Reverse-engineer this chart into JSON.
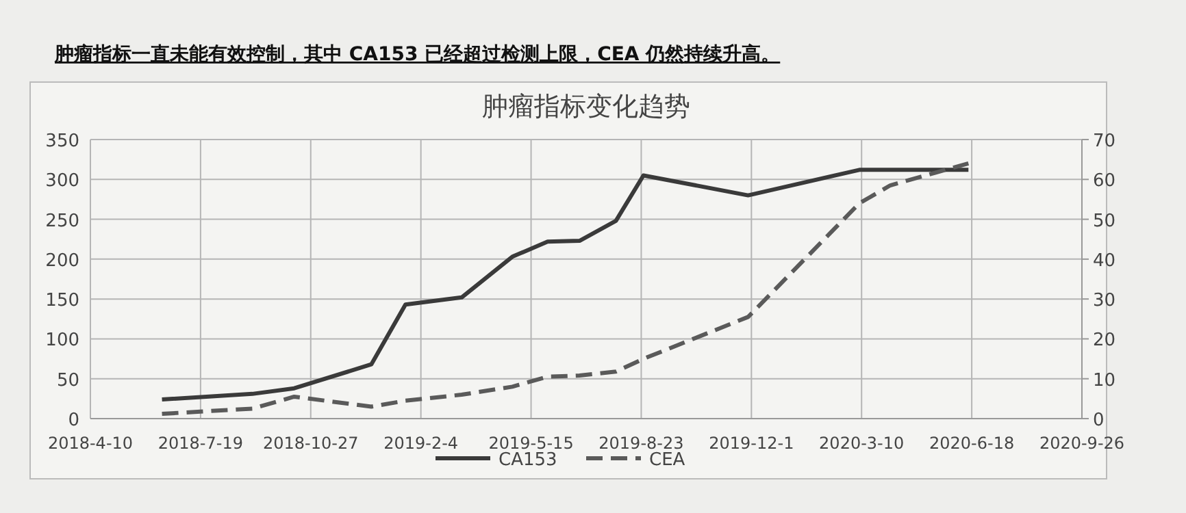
{
  "chart_data": {
    "type": "line",
    "title": "肿瘤指标变化趋势",
    "annotations": [
      "肿瘤指标一直未能有效控制，其中 CA153 已经超过检测上限，CEA 仍然持续升高。"
    ],
    "x": [
      "2018-06-14",
      "2018-09-04",
      "2018-10-12",
      "2018-12-21",
      "2019-01-21",
      "2019-03-13",
      "2019-04-28",
      "2019-05-30",
      "2019-06-28",
      "2019-07-31",
      "2019-08-25",
      "2019-11-28",
      "2020-03-08",
      "2020-04-05",
      "2020-06-15"
    ],
    "series": [
      {
        "name": "CA153",
        "color": "#3a3a3a",
        "line_style": "solid",
        "values": [
          24,
          31,
          38,
          68,
          143,
          152,
          203,
          222,
          223,
          248,
          305,
          280,
          312,
          312,
          312
        ]
      },
      {
        "name": "CEA",
        "color": "#5a5a5a",
        "line_style": "dashed",
        "axis": "y2",
        "values": [
          1.2,
          2.5,
          5.5,
          3,
          4.5,
          6,
          8,
          10.5,
          10.8,
          11.8,
          15,
          25.5,
          54,
          58.5,
          64
        ]
      }
    ],
    "xlim": [
      "2018-04-10",
      "2020-09-26"
    ],
    "xticks": [
      {
        "value": "2018-04-10",
        "label": "2018-4-10"
      },
      {
        "value": "2018-07-19",
        "label": "2018-7-19"
      },
      {
        "value": "2018-10-27",
        "label": "2018-10-27"
      },
      {
        "value": "2019-02-04",
        "label": "2019-2-4"
      },
      {
        "value": "2019-05-15",
        "label": "2019-5-15"
      },
      {
        "value": "2019-08-23",
        "label": "2019-8-23"
      },
      {
        "value": "2019-12-01",
        "label": "2019-12-1"
      },
      {
        "value": "2020-03-10",
        "label": "2020-3-10"
      },
      {
        "value": "2020-06-18",
        "label": "2020-6-18"
      },
      {
        "value": "2020-09-26",
        "label": "2020-9-26"
      }
    ],
    "ylim": [
      0,
      350
    ],
    "yticks": [
      0,
      50,
      100,
      150,
      200,
      250,
      300,
      350
    ],
    "y2lim": [
      0,
      70
    ],
    "y2ticks": [
      0,
      10,
      20,
      30,
      40,
      50,
      60,
      70
    ],
    "grid": true,
    "legend": "bottom"
  }
}
